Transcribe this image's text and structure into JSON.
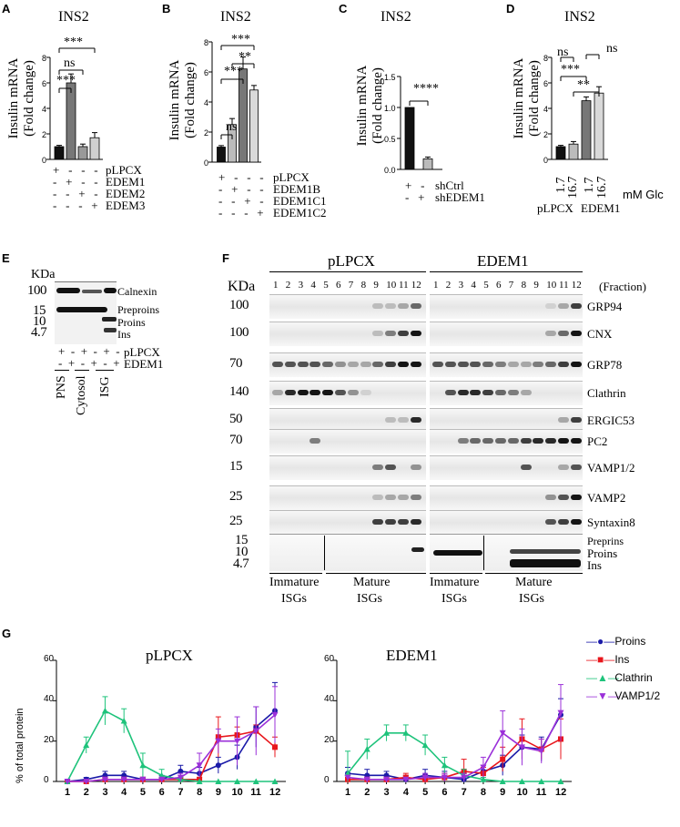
{
  "figure": {
    "panel_labels": [
      "A",
      "B",
      "C",
      "D",
      "E",
      "F",
      "G"
    ],
    "colors": {
      "black": "#111111",
      "dark_gray": "#6f6f6f",
      "light_gray": "#c8c8c8",
      "mid_gray": "#999999"
    }
  },
  "panelA": {
    "title": "INS2",
    "ylabel_line1": "Insulin mRNA",
    "ylabel_line2": "(Fold change)",
    "yticks": [
      "0",
      "2",
      "4",
      "6",
      "8"
    ],
    "significance": [
      "***",
      "ns",
      "***"
    ],
    "row_labels": [
      "pLPCX",
      "EDEM1",
      "EDEM2",
      "EDEM3"
    ],
    "row_signs": [
      [
        "+",
        "-",
        "-",
        "-"
      ],
      [
        "-",
        "+",
        "-",
        "-"
      ],
      [
        "-",
        "-",
        "+",
        "-"
      ],
      [
        "-",
        "-",
        "-",
        "+"
      ]
    ],
    "chart_data": {
      "type": "bar",
      "categories": [
        "pLPCX",
        "EDEM1",
        "EDEM2",
        "EDEM3"
      ],
      "values": [
        1.0,
        6.0,
        1.0,
        1.7
      ],
      "errors": [
        0.1,
        0.7,
        0.2,
        0.4
      ],
      "ylim": [
        0,
        8
      ],
      "ylabel": "Insulin mRNA (Fold change)",
      "title": "INS2"
    }
  },
  "panelB": {
    "title": "INS2",
    "ylabel_line1": "Insulin mRNA",
    "ylabel_line2": "(Fold change)",
    "yticks": [
      "0",
      "2",
      "4",
      "6",
      "8"
    ],
    "significance": [
      "ns",
      "***",
      "**",
      "***"
    ],
    "row_labels": [
      "pLPCX",
      "EDEM1B",
      "EDEM1C1",
      "EDEM1C2"
    ],
    "row_signs": [
      [
        "+",
        "-",
        "-",
        "-"
      ],
      [
        "-",
        "+",
        "-",
        "-"
      ],
      [
        "-",
        "-",
        "+",
        "-"
      ],
      [
        "-",
        "-",
        "-",
        "+"
      ]
    ],
    "chart_data": {
      "type": "bar",
      "categories": [
        "pLPCX",
        "EDEM1B",
        "EDEM1C1",
        "EDEM1C2"
      ],
      "values": [
        1.0,
        2.5,
        6.2,
        4.8
      ],
      "errors": [
        0.1,
        0.4,
        0.8,
        0.3
      ],
      "ylim": [
        0,
        8
      ],
      "ylabel": "Insulin mRNA (Fold change)",
      "title": "INS2"
    }
  },
  "panelC": {
    "title": "INS2",
    "ylabel_line1": "Insulin mRNA",
    "ylabel_line2": "(Fold change)",
    "yticks": [
      "0.0",
      "0.5",
      "1.0",
      "1.5"
    ],
    "significance": [
      "****"
    ],
    "row_labels": [
      "shCtrl",
      "shEDEM1"
    ],
    "row_signs": [
      [
        "+",
        "-"
      ],
      [
        "-",
        "+"
      ]
    ],
    "chart_data": {
      "type": "bar",
      "categories": [
        "shCtrl",
        "shEDEM1"
      ],
      "values": [
        1.0,
        0.17
      ],
      "errors": [
        0.0,
        0.03
      ],
      "ylim": [
        0,
        1.5
      ],
      "ylabel": "Insulin mRNA (Fold change)",
      "title": "INS2"
    }
  },
  "panelD": {
    "title": "INS2",
    "ylabel_line1": "Insulin mRNA",
    "ylabel_line2": "(Fold change)",
    "yticks": [
      "0",
      "2",
      "4",
      "6",
      "8"
    ],
    "significance": [
      "ns",
      "ns",
      "***",
      "**"
    ],
    "glc_values": [
      "1.7",
      "16.7",
      "1.7",
      "16.7"
    ],
    "glc_unit": "mM Glc",
    "groups": [
      "pLPCX",
      "EDEM1"
    ],
    "chart_data": {
      "type": "bar",
      "categories": [
        "pLPCX 1.7",
        "pLPCX 16.7",
        "EDEM1 1.7",
        "EDEM1 16.7"
      ],
      "values": [
        1.0,
        1.2,
        4.6,
        5.2
      ],
      "errors": [
        0.1,
        0.2,
        0.3,
        0.5
      ],
      "ylim": [
        0,
        8
      ],
      "ylabel": "Insulin mRNA (Fold change)",
      "title": "INS2"
    }
  },
  "panelE": {
    "kda_label": "KDa",
    "markers": [
      "100",
      "15",
      "10",
      "4.7"
    ],
    "bands": [
      "Calnexin",
      "Preproins",
      "Proins",
      "Ins"
    ],
    "row_labels": [
      "pLPCX",
      "EDEM1"
    ],
    "row_signs": [
      [
        "+",
        "-",
        "+",
        "-",
        "+",
        "-"
      ],
      [
        "-",
        "+",
        "-",
        "+",
        "-",
        "+"
      ]
    ],
    "fractions": [
      "PNS",
      "Cytosol",
      "ISG"
    ]
  },
  "panelF": {
    "kda_label": "KDa",
    "group_labels": [
      "pLPCX",
      "EDEM1"
    ],
    "fraction_label": "(Fraction)",
    "fraction_numbers": [
      "1",
      "2",
      "3",
      "4",
      "5",
      "6",
      "7",
      "8",
      "9",
      "10",
      "11",
      "12"
    ],
    "rows": [
      {
        "marker": "100",
        "label": "GRP94"
      },
      {
        "marker": "100",
        "label": "CNX"
      },
      {
        "marker": "70",
        "label": "GRP78"
      },
      {
        "marker": "140",
        "label": "Clathrin"
      },
      {
        "marker": "50",
        "label": "ERGIC53"
      },
      {
        "marker": "70",
        "label": "PC2"
      },
      {
        "marker": "15",
        "label": "VAMP1/2"
      },
      {
        "marker": "25",
        "label": "VAMP2"
      },
      {
        "marker": "25",
        "label": "Syntaxin8"
      }
    ],
    "last_markers": [
      "15",
      "10",
      "4.7"
    ],
    "last_labels": [
      "Preprins",
      "Proins",
      "Ins"
    ],
    "bottom_labels": {
      "immature_1": "Immature",
      "isgs_1": "ISGs",
      "mature_1": "Mature",
      "isgs_2": "ISGs",
      "immature_2": "Immature",
      "isgs_3": "ISGs",
      "mature_2": "Mature",
      "isgs_4": "ISGs"
    }
  },
  "panelG": {
    "ylabel": "% of total protein",
    "legend": [
      "Proins",
      "Ins",
      "Clathrin",
      "VAMP1/2"
    ],
    "chart_data": [
      {
        "type": "line",
        "title": "pLPCX",
        "ylabel": "% of total protein",
        "x": [
          1,
          2,
          3,
          4,
          5,
          6,
          7,
          8,
          9,
          10,
          11,
          12
        ],
        "ylim": [
          0,
          60
        ],
        "yticks": [
          "0",
          "20",
          "40",
          "60"
        ],
        "series": [
          {
            "name": "Proins",
            "color": "#1a1aa8",
            "values": [
              0,
              1,
              3,
              3,
              1,
              1,
              5,
              4,
              8,
              12,
              27,
              35
            ],
            "errors": [
              0,
              1,
              2,
              2,
              1,
              2,
              3,
              3,
              4,
              6,
              10,
              14
            ]
          },
          {
            "name": "Ins",
            "color": "#e8161c",
            "values": [
              0,
              0,
              1,
              1,
              1,
              1,
              1,
              1,
              22,
              23,
              25,
              17
            ],
            "errors": [
              0,
              0,
              1,
              1,
              1,
              1,
              1,
              1,
              10,
              4,
              3,
              5
            ]
          },
          {
            "name": "Clathrin",
            "color": "#1ec37b",
            "values": [
              0,
              18,
              35,
              30,
              8,
              3,
              1,
              0,
              0,
              0,
              0,
              0
            ],
            "errors": [
              0,
              4,
              7,
              6,
              6,
              3,
              1,
              0,
              0,
              0,
              0,
              0
            ]
          },
          {
            "name": "VAMP1/2",
            "color": "#9b30d9",
            "values": [
              0,
              0,
              1,
              1,
              1,
              1,
              2,
              8,
              20,
              20,
              25,
              33
            ],
            "errors": [
              0,
              0,
              1,
              1,
              1,
              1,
              2,
              6,
              6,
              12,
              12,
              14
            ]
          }
        ]
      },
      {
        "type": "line",
        "title": "EDEM1",
        "ylabel": "",
        "x": [
          1,
          2,
          3,
          4,
          5,
          6,
          7,
          8,
          9,
          10,
          11,
          12
        ],
        "ylim": [
          0,
          60
        ],
        "yticks": [
          "0",
          "20",
          "40",
          "60"
        ],
        "series": [
          {
            "name": "Proins",
            "color": "#1a1aa8",
            "values": [
              4,
              3,
              3,
              1,
              3,
              2,
              1,
              5,
              8,
              17,
              16,
              33
            ],
            "errors": [
              3,
              3,
              2,
              2,
              3,
              3,
              3,
              3,
              5,
              6,
              6,
              8
            ]
          },
          {
            "name": "Ins",
            "color": "#e8161c",
            "values": [
              1,
              1,
              1,
              2,
              1,
              2,
              5,
              4,
              11,
              21,
              16,
              21
            ],
            "errors": [
              1,
              1,
              1,
              2,
              2,
              2,
              6,
              3,
              6,
              10,
              5,
              10
            ]
          },
          {
            "name": "Clathrin",
            "color": "#1ec37b",
            "values": [
              4,
              16,
              24,
              24,
              18,
              8,
              3,
              1,
              0,
              0,
              0,
              0
            ],
            "errors": [
              11,
              5,
              4,
              4,
              5,
              4,
              3,
              1,
              0,
              0,
              0,
              0
            ]
          },
          {
            "name": "VAMP1/2",
            "color": "#9b30d9",
            "values": [
              2,
              1,
              1,
              1,
              2,
              2,
              2,
              7,
              24,
              17,
              15,
              34
            ],
            "errors": [
              1,
              1,
              1,
              1,
              2,
              2,
              2,
              5,
              11,
              9,
              6,
              14
            ]
          }
        ]
      }
    ]
  }
}
